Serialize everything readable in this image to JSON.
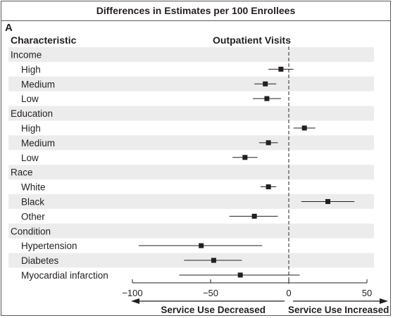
{
  "header": {
    "title": "Differences in Estimates per 100 Enrollees"
  },
  "panel": {
    "letter": "A"
  },
  "columns": {
    "characteristic": "Characteristic",
    "outcome": "Outpatient Visits"
  },
  "directions": {
    "left": "Service Use Decreased",
    "right": "Service Use Increased"
  },
  "colors": {
    "text": "#231f20",
    "stripe": "#ececec",
    "marker": "#231f20",
    "refline": "#555555"
  },
  "chart_data": {
    "type": "forest",
    "xlim": [
      -100,
      50
    ],
    "xticks": [
      -100,
      -50,
      0,
      50
    ],
    "reference_line": 0,
    "rows": [
      {
        "label": "Income",
        "group": true
      },
      {
        "label": "High",
        "estimate": -5,
        "lower": -13,
        "upper": 3
      },
      {
        "label": "Medium",
        "estimate": -15,
        "lower": -22,
        "upper": -8
      },
      {
        "label": "Low",
        "estimate": -14,
        "lower": -23,
        "upper": -5
      },
      {
        "label": "Education",
        "group": true
      },
      {
        "label": "High",
        "estimate": 10,
        "lower": 3,
        "upper": 17
      },
      {
        "label": "Medium",
        "estimate": -13,
        "lower": -19,
        "upper": -7
      },
      {
        "label": "Low",
        "estimate": -28,
        "lower": -36,
        "upper": -20
      },
      {
        "label": "Race",
        "group": true
      },
      {
        "label": "White",
        "estimate": -13,
        "lower": -18,
        "upper": -8
      },
      {
        "label": "Black",
        "estimate": 25,
        "lower": 8,
        "upper": 42
      },
      {
        "label": "Other",
        "estimate": -22,
        "lower": -38,
        "upper": -7
      },
      {
        "label": "Condition",
        "group": true
      },
      {
        "label": "Hypertension",
        "estimate": -56,
        "lower": -96,
        "upper": -17
      },
      {
        "label": "Diabetes",
        "estimate": -48,
        "lower": -67,
        "upper": -30
      },
      {
        "label": "Myocardial infarction",
        "estimate": -31,
        "lower": -70,
        "upper": 7
      }
    ]
  }
}
